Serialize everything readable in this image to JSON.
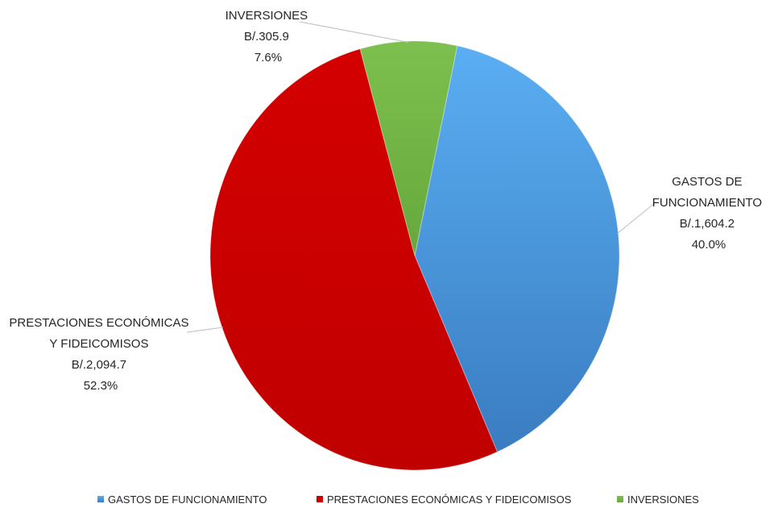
{
  "chart_data": {
    "type": "pie",
    "title": "",
    "currency_prefix": "B/.",
    "legend_position": "bottom",
    "slices": [
      {
        "name": "GASTOS DE FUNCIONAMIENTO",
        "label_lines": [
          "GASTOS DE",
          "FUNCIONAMIENTO"
        ],
        "value": 1604.2,
        "value_label": "B/.1,604.2",
        "percent": 40.0,
        "percent_label": "40.0%",
        "color": "#4a97dc"
      },
      {
        "name": "PRESTACIONES ECONÓMICAS Y FIDEICOMISOS",
        "label_lines": [
          "PRESTACIONES ECONÓMICAS",
          "Y FIDEICOMISOS"
        ],
        "value": 2094.7,
        "value_label": "B/.2,094.7",
        "percent": 52.3,
        "percent_label": "52.3%",
        "color": "#c00000"
      },
      {
        "name": "INVERSIONES",
        "label_lines": [
          "INVERSIONES"
        ],
        "value": 305.9,
        "value_label": "B/.305.9",
        "percent": 7.6,
        "percent_label": "7.6%",
        "color": "#70b244"
      }
    ]
  }
}
